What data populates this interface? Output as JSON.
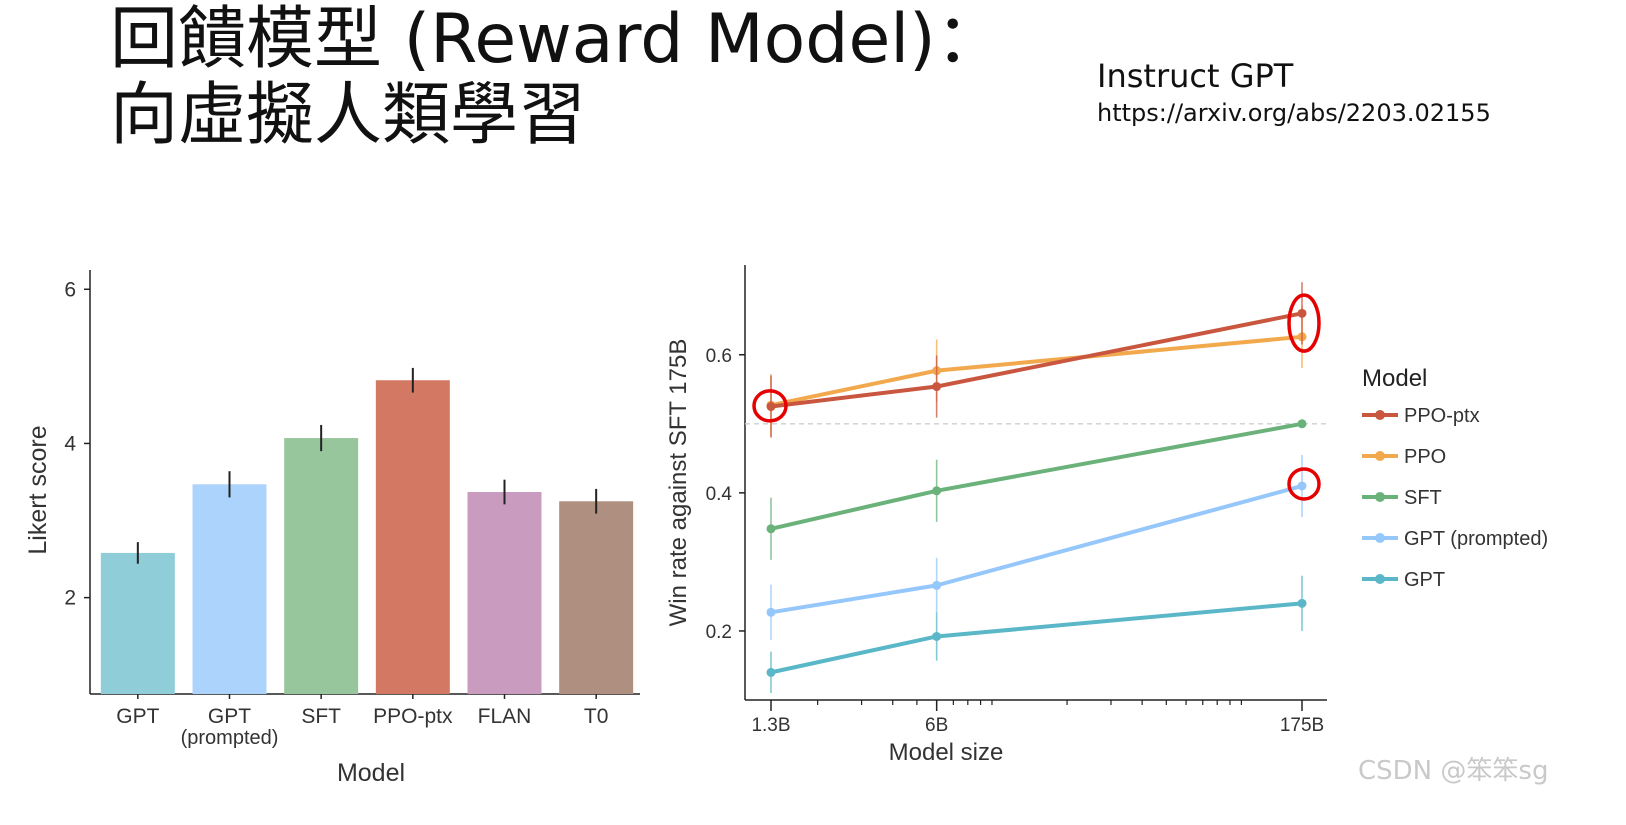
{
  "slide": {
    "title_line1": "回饋模型 (Reward Model)：",
    "title_line2": "向虛擬人類學習",
    "ref_name": "Instruct GPT",
    "ref_url": "https://arxiv.org/abs/2203.02155",
    "watermark": "CSDN @笨笨sg"
  },
  "chart_data": [
    {
      "type": "bar",
      "xlabel": "Model",
      "ylabel": "Likert score",
      "ylim": [
        0.75,
        6.25
      ],
      "yticks": [
        2,
        4,
        6
      ],
      "categories": [
        {
          "label": "GPT"
        },
        {
          "label": "GPT",
          "sublabel": "(prompted)"
        },
        {
          "label": "SFT"
        },
        {
          "label": "PPO-ptx"
        },
        {
          "label": "FLAN"
        },
        {
          "label": "T0"
        }
      ],
      "values": [
        2.58,
        3.47,
        4.07,
        4.82,
        3.37,
        3.25
      ],
      "errors": [
        0.14,
        0.17,
        0.17,
        0.16,
        0.16,
        0.16
      ],
      "colors": [
        "#8fcdd8",
        "#acd3fb",
        "#97c69c",
        "#d37863",
        "#c99bbe",
        "#ae8f80"
      ]
    },
    {
      "type": "line",
      "xlabel": "Model size",
      "ylabel": "Win rate against SFT 175B",
      "xscale": "log",
      "x": [
        "1.3B",
        "6B",
        "175B"
      ],
      "x_values": [
        1.3,
        6,
        175
      ],
      "ylim": [
        0.1,
        0.73
      ],
      "yticks": [
        0.2,
        0.4,
        0.6
      ],
      "reference_line": 0.5,
      "legend_title": "Model",
      "legend_position": "right",
      "series": [
        {
          "name": "PPO-ptx",
          "values": [
            0.525,
            0.554,
            0.66
          ],
          "errors": [
            0.045,
            0.045,
            0.045
          ],
          "color": "#c9563f"
        },
        {
          "name": "PPO",
          "values": [
            0.527,
            0.577,
            0.626
          ],
          "errors": [
            0.045,
            0.045,
            0.045
          ],
          "color": "#f2a94d"
        },
        {
          "name": "SFT",
          "values": [
            0.348,
            0.403,
            0.5
          ],
          "errors": [
            0.045,
            0.045,
            0.0
          ],
          "color": "#6ab27a"
        },
        {
          "name": "GPT (prompted)",
          "values": [
            0.227,
            0.266,
            0.41
          ],
          "errors": [
            0.04,
            0.04,
            0.045
          ],
          "color": "#95c7fb"
        },
        {
          "name": "GPT",
          "values": [
            0.14,
            0.192,
            0.24
          ],
          "errors": [
            0.03,
            0.035,
            0.04
          ],
          "color": "#5ab7c7"
        }
      ],
      "highlight_color": "#e60000"
    }
  ]
}
